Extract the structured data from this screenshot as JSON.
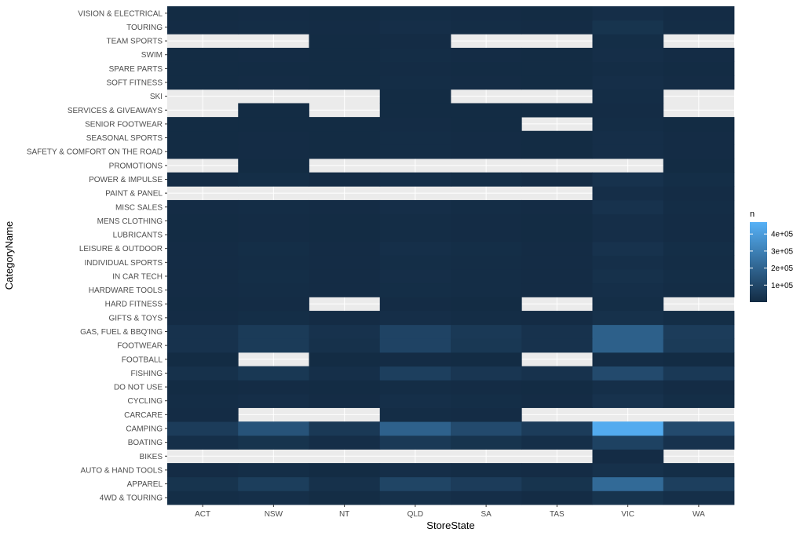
{
  "chart_data": {
    "type": "heatmap",
    "xlabel": "StoreState",
    "ylabel": "CategoryName",
    "x_categories": [
      "ACT",
      "NSW",
      "NT",
      "QLD",
      "SA",
      "TAS",
      "VIC",
      "WA"
    ],
    "y_categories": [
      "4WD & TOURING",
      "APPAREL",
      "AUTO & HAND TOOLS",
      "BIKES",
      "BOATING",
      "CAMPING",
      "CARCARE",
      "CYCLING",
      "DO NOT USE",
      "FISHING",
      "FOOTBALL",
      "FOOTWEAR",
      "GAS, FUEL & BBQ'ING",
      "GIFTS & TOYS",
      "HARD FITNESS",
      "HARDWARE TOOLS",
      "IN CAR TECH",
      "INDIVIDUAL SPORTS",
      "LEISURE & OUTDOOR",
      "LUBRICANTS",
      "MENS CLOTHING",
      "MISC SALES",
      "PAINT & PANEL",
      "POWER & IMPULSE",
      "PROMOTIONS",
      "SAFETY & COMFORT ON THE ROAD",
      "SEASONAL SPORTS",
      "SENIOR FOOTWEAR",
      "SERVICES & GIVEAWAYS",
      "SKI",
      "SOFT FITNESS",
      "SPARE PARTS",
      "SWIM",
      "TEAM SPORTS",
      "TOURING",
      "VISION & ELECTRICAL"
    ],
    "values": [
      [
        10000,
        15000,
        6000,
        20000,
        12000,
        5000,
        30000,
        15000
      ],
      [
        30000,
        65000,
        22000,
        90000,
        60000,
        30000,
        220000,
        70000
      ],
      [
        5000,
        10000,
        3000,
        12000,
        8000,
        4000,
        20000,
        10000
      ],
      [
        null,
        null,
        null,
        null,
        null,
        null,
        5000,
        null
      ],
      [
        15000,
        30000,
        12000,
        50000,
        30000,
        15000,
        80000,
        25000
      ],
      [
        60000,
        140000,
        50000,
        190000,
        110000,
        60000,
        450000,
        110000
      ],
      [
        5000,
        null,
        null,
        8000,
        5000,
        null,
        null,
        null
      ],
      [
        8000,
        12000,
        5000,
        15000,
        10000,
        5000,
        25000,
        10000
      ],
      [
        3000,
        5000,
        3000,
        8000,
        5000,
        3000,
        15000,
        5000
      ],
      [
        20000,
        45000,
        15000,
        70000,
        40000,
        25000,
        110000,
        50000
      ],
      [
        2000,
        null,
        2000,
        5000,
        3000,
        null,
        8000,
        3000
      ],
      [
        25000,
        55000,
        20000,
        85000,
        45000,
        25000,
        185000,
        55000
      ],
      [
        25000,
        55000,
        25000,
        85000,
        50000,
        25000,
        185000,
        60000
      ],
      [
        5000,
        10000,
        5000,
        12000,
        8000,
        5000,
        20000,
        10000
      ],
      [
        3000,
        5000,
        null,
        5000,
        3000,
        null,
        10000,
        null
      ],
      [
        5000,
        8000,
        5000,
        10000,
        8000,
        5000,
        15000,
        8000
      ],
      [
        5000,
        10000,
        5000,
        12000,
        8000,
        5000,
        20000,
        10000
      ],
      [
        5000,
        8000,
        5000,
        10000,
        8000,
        5000,
        15000,
        8000
      ],
      [
        5000,
        10000,
        5000,
        15000,
        10000,
        5000,
        25000,
        10000
      ],
      [
        3000,
        5000,
        3000,
        8000,
        5000,
        3000,
        12000,
        5000
      ],
      [
        3000,
        5000,
        3000,
        8000,
        5000,
        3000,
        12000,
        5000
      ],
      [
        5000,
        8000,
        5000,
        12000,
        8000,
        5000,
        25000,
        8000
      ],
      [
        null,
        null,
        null,
        null,
        null,
        null,
        12000,
        5000
      ],
      [
        5000,
        10000,
        5000,
        15000,
        10000,
        5000,
        25000,
        10000
      ],
      [
        null,
        2000,
        null,
        null,
        null,
        null,
        null,
        2000
      ],
      [
        3000,
        5000,
        3000,
        8000,
        5000,
        3000,
        12000,
        5000
      ],
      [
        3000,
        5000,
        3000,
        8000,
        5000,
        3000,
        12000,
        5000
      ],
      [
        2000,
        3000,
        2000,
        5000,
        3000,
        null,
        8000,
        3000
      ],
      [
        null,
        2000,
        null,
        3000,
        2000,
        2000,
        5000,
        null
      ],
      [
        null,
        null,
        null,
        3000,
        null,
        null,
        8000,
        null
      ],
      [
        3000,
        5000,
        3000,
        8000,
        5000,
        3000,
        12000,
        5000
      ],
      [
        2000,
        3000,
        2000,
        5000,
        3000,
        2000,
        8000,
        3000
      ],
      [
        3000,
        5000,
        3000,
        8000,
        5000,
        3000,
        12000,
        5000
      ],
      [
        null,
        null,
        3000,
        5000,
        null,
        null,
        10000,
        null
      ],
      [
        5000,
        8000,
        5000,
        12000,
        8000,
        5000,
        30000,
        8000
      ],
      [
        3000,
        5000,
        3000,
        8000,
        5000,
        3000,
        12000,
        5000
      ]
    ],
    "legend": {
      "title": "n",
      "position": "right",
      "ticks": [
        100000,
        200000,
        300000,
        400000
      ],
      "tick_labels": [
        "1e+05",
        "2e+05",
        "3e+05",
        "4e+05"
      ],
      "range": [
        0,
        470000
      ]
    },
    "colors": {
      "low": "#132b43",
      "high": "#56b1f7",
      "panel_background": "#ebebeb",
      "grid_major": "#ffffff"
    },
    "grid": true
  }
}
